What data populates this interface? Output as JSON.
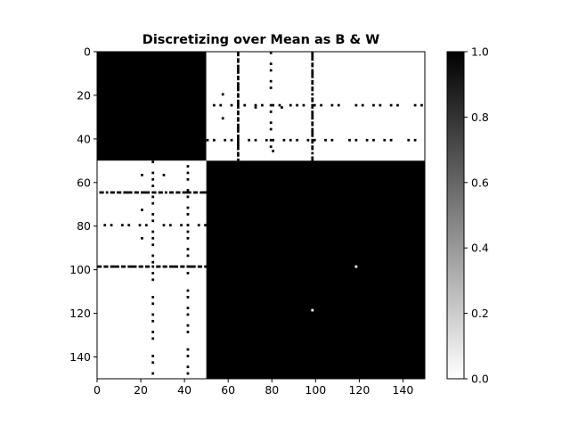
{
  "chart_data": {
    "type": "heatmap",
    "title": "Discretizing over Mean as B & W",
    "colormap": "gray_r",
    "matrix_size": 150,
    "x_ticks": [
      0,
      20,
      40,
      60,
      80,
      100,
      120,
      140
    ],
    "y_ticks": [
      0,
      20,
      40,
      60,
      80,
      100,
      120,
      140
    ],
    "colorbar": {
      "ticks": [
        0.0,
        0.2,
        0.4,
        0.6,
        0.8,
        1.0
      ],
      "labels": [
        "0.0",
        "0.2",
        "0.4",
        "0.6",
        "0.8",
        "1.0"
      ],
      "range": [
        0,
        1
      ]
    },
    "blocks": [
      {
        "rows": [
          0,
          49
        ],
        "cols": [
          0,
          49
        ],
        "value": 1
      },
      {
        "rows": [
          0,
          49
        ],
        "cols": [
          50,
          149
        ],
        "value": 0
      },
      {
        "rows": [
          50,
          149
        ],
        "cols": [
          0,
          49
        ],
        "value": 0
      },
      {
        "rows": [
          50,
          149
        ],
        "cols": [
          50,
          149
        ],
        "value": 1
      }
    ],
    "exception_lines": [
      {
        "axis": "col",
        "index": 64,
        "range": [
          0,
          49
        ],
        "value": 1,
        "pattern": "dense"
      },
      {
        "axis": "col",
        "index": 79,
        "range": [
          0,
          49
        ],
        "value": 1,
        "pattern": "sparse"
      },
      {
        "axis": "col",
        "index": 98,
        "range": [
          0,
          49
        ],
        "value": 1,
        "pattern": "dense"
      },
      {
        "axis": "row",
        "index": 24,
        "range": [
          50,
          149
        ],
        "value": 1,
        "pattern": "sparse"
      },
      {
        "axis": "row",
        "index": 40,
        "range": [
          50,
          149
        ],
        "value": 1,
        "pattern": "sparse"
      },
      {
        "axis": "col",
        "index": 25,
        "range": [
          50,
          149
        ],
        "value": 1,
        "pattern": "sparse"
      },
      {
        "axis": "col",
        "index": 41,
        "range": [
          50,
          149
        ],
        "value": 1,
        "pattern": "sparse"
      },
      {
        "axis": "row",
        "index": 64,
        "range": [
          0,
          49
        ],
        "value": 1,
        "pattern": "dense"
      },
      {
        "axis": "row",
        "index": 79,
        "range": [
          0,
          49
        ],
        "value": 1,
        "pattern": "sparse"
      },
      {
        "axis": "row",
        "index": 98,
        "range": [
          0,
          49
        ],
        "value": 1,
        "pattern": "dense"
      }
    ],
    "exception_cells": [
      {
        "row": 19,
        "col": 57,
        "value": 1
      },
      {
        "row": 30,
        "col": 57,
        "value": 1
      },
      {
        "row": 25,
        "col": 72,
        "value": 1
      },
      {
        "row": 25,
        "col": 84,
        "value": 1
      },
      {
        "row": 45,
        "col": 80,
        "value": 1
      },
      {
        "row": 56,
        "col": 20,
        "value": 1
      },
      {
        "row": 56,
        "col": 30,
        "value": 1
      },
      {
        "row": 72,
        "col": 20,
        "value": 1
      },
      {
        "row": 85,
        "col": 20,
        "value": 1
      },
      {
        "row": 98,
        "col": 118,
        "value": 0
      },
      {
        "row": 118,
        "col": 98,
        "value": 0
      }
    ]
  }
}
